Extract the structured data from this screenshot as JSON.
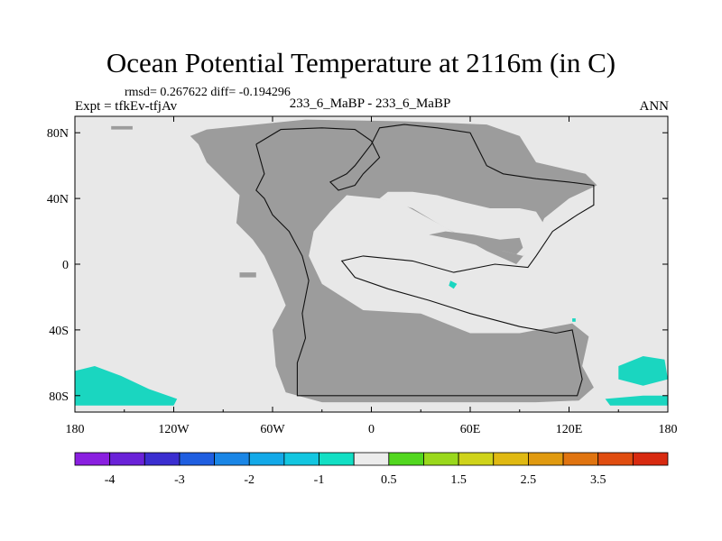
{
  "title": "Ocean Potential Temperature at 2116m (in C)",
  "stats_line": "rmsd= 0.267622 diff= -0.194296",
  "experiment": "Expt = tfkEv-tfjAv",
  "period": "233_6_MaBP - 233_6_MaBP",
  "season": "ANN",
  "chart_data": {
    "type": "heatmap",
    "projection": "cylindrical-equidistant",
    "x_tick_labels": [
      "180",
      "120W",
      "60W",
      "0",
      "60E",
      "120E",
      "180"
    ],
    "x_tick_values": [
      -180,
      -120,
      -60,
      0,
      60,
      120,
      180
    ],
    "y_tick_labels": [
      "80N",
      "40N",
      "0",
      "40S",
      "80S"
    ],
    "y_tick_values": [
      80,
      40,
      0,
      -40,
      -80
    ],
    "xlim": [
      -180,
      180
    ],
    "ylim": [
      -90,
      90
    ],
    "colorbar": {
      "levels": [
        -4,
        -3.5,
        -3,
        -2.5,
        -2,
        -1.5,
        -1,
        -0.5,
        0.5,
        1,
        1.5,
        2,
        2.5,
        3,
        3.5,
        4
      ],
      "level_labels": [
        "-4",
        "-3",
        "-2",
        "-1",
        "0.5",
        "1.5",
        "2.5",
        "3.5"
      ],
      "colors": [
        "#8a1fe0",
        "#6a22d8",
        "#3b2ed0",
        "#1f5ee0",
        "#1a86e6",
        "#13a9e8",
        "#13c6e0",
        "#12dfc4",
        "#ececec",
        "#52d71f",
        "#9ad81c",
        "#cfd31a",
        "#e0b912",
        "#e09a10",
        "#e07410",
        "#e04d10",
        "#d82a10"
      ]
    },
    "land_color": "#9c9c9c",
    "ocean_color": "#e8e8e8",
    "highlight_color": "#1ad6c0",
    "regions": {
      "supercontinent": [
        [
          -105,
          73
        ],
        [
          -110,
          78
        ],
        [
          -100,
          82
        ],
        [
          -70,
          85
        ],
        [
          -40,
          88
        ],
        [
          20,
          87
        ],
        [
          70,
          85
        ],
        [
          90,
          78
        ],
        [
          100,
          62
        ],
        [
          130,
          55
        ],
        [
          137,
          48
        ],
        [
          120,
          40
        ],
        [
          105,
          28
        ],
        [
          98,
          12
        ],
        [
          88,
          0
        ],
        [
          70,
          8
        ],
        [
          40,
          25
        ],
        [
          20,
          36
        ],
        [
          5,
          40
        ],
        [
          -15,
          42
        ],
        [
          -25,
          32
        ],
        [
          -35,
          20
        ],
        [
          -38,
          5
        ],
        [
          -30,
          -12
        ],
        [
          -5,
          -28
        ],
        [
          30,
          -30
        ],
        [
          60,
          -42
        ],
        [
          90,
          -42
        ],
        [
          122,
          -36
        ],
        [
          132,
          -44
        ],
        [
          128,
          -62
        ],
        [
          135,
          -75
        ],
        [
          126,
          -83
        ],
        [
          100,
          -84
        ],
        [
          40,
          -84
        ],
        [
          -30,
          -84
        ],
        [
          -52,
          -78
        ],
        [
          -58,
          -62
        ],
        [
          -60,
          -40
        ],
        [
          -52,
          -25
        ],
        [
          -58,
          -10
        ],
        [
          -65,
          5
        ],
        [
          -72,
          15
        ],
        [
          -82,
          25
        ],
        [
          -80,
          42
        ],
        [
          -100,
          62
        ]
      ],
      "land_outline": [
        [
          -70,
          73
        ],
        [
          -65,
          55
        ],
        [
          -70,
          45
        ],
        [
          -65,
          40
        ],
        [
          -60,
          30
        ],
        [
          -50,
          20
        ],
        [
          -42,
          5
        ],
        [
          -38,
          -10
        ],
        [
          -42,
          -30
        ],
        [
          -40,
          -45
        ],
        [
          -45,
          -60
        ],
        [
          -45,
          -80
        ],
        [
          -10,
          -80
        ],
        [
          60,
          -80
        ],
        [
          100,
          -80
        ],
        [
          125,
          -80
        ],
        [
          128,
          -70
        ],
        [
          125,
          -55
        ],
        [
          122,
          -40
        ],
        [
          112,
          -42
        ],
        [
          90,
          -38
        ],
        [
          60,
          -30
        ],
        [
          35,
          -22
        ],
        [
          10,
          -15
        ],
        [
          -10,
          -8
        ],
        [
          -18,
          2
        ],
        [
          -5,
          5
        ],
        [
          25,
          2
        ],
        [
          50,
          -5
        ],
        [
          75,
          0
        ],
        [
          95,
          -2
        ],
        [
          100,
          5
        ],
        [
          110,
          20
        ],
        [
          125,
          30
        ],
        [
          135,
          36
        ],
        [
          135,
          48
        ],
        [
          120,
          50
        ],
        [
          100,
          52
        ],
        [
          80,
          55
        ],
        [
          70,
          60
        ],
        [
          65,
          70
        ],
        [
          60,
          80
        ],
        [
          40,
          83
        ],
        [
          20,
          85
        ],
        [
          5,
          83
        ],
        [
          0,
          73
        ],
        [
          -10,
          60
        ],
        [
          -15,
          55
        ],
        [
          -25,
          50
        ],
        [
          -20,
          45
        ],
        [
          -10,
          48
        ],
        [
          -5,
          55
        ],
        [
          5,
          65
        ],
        [
          0,
          75
        ],
        [
          -10,
          82
        ],
        [
          -30,
          83
        ],
        [
          -55,
          82
        ],
        [
          -70,
          73
        ]
      ],
      "tethys_gulf": [
        [
          5,
          40
        ],
        [
          25,
          34
        ],
        [
          45,
          22
        ],
        [
          65,
          12
        ],
        [
          80,
          8
        ],
        [
          92,
          5
        ],
        [
          100,
          12
        ],
        [
          105,
          24
        ],
        [
          100,
          32
        ],
        [
          90,
          34
        ],
        [
          72,
          34
        ],
        [
          55,
          38
        ],
        [
          40,
          42
        ],
        [
          25,
          44
        ],
        [
          10,
          44
        ]
      ],
      "east_land_island": [
        [
          35,
          18
        ],
        [
          55,
          14
        ],
        [
          70,
          10
        ],
        [
          80,
          8
        ],
        [
          88,
          6
        ],
        [
          92,
          10
        ],
        [
          90,
          16
        ],
        [
          78,
          15
        ],
        [
          62,
          18
        ],
        [
          45,
          20
        ]
      ],
      "warming_patches": [
        [
          [
            -180,
            -65
          ],
          [
            -168,
            -62
          ],
          [
            -152,
            -68
          ],
          [
            -135,
            -76
          ],
          [
            -118,
            -82
          ],
          [
            -120,
            -86
          ],
          [
            -150,
            -86
          ],
          [
            -180,
            -86
          ]
        ],
        [
          [
            150,
            -62
          ],
          [
            165,
            -56
          ],
          [
            178,
            -58
          ],
          [
            180,
            -70
          ],
          [
            165,
            -74
          ],
          [
            150,
            -70
          ]
        ],
        [
          [
            142,
            -82
          ],
          [
            165,
            -80
          ],
          [
            180,
            -80
          ],
          [
            180,
            -86
          ],
          [
            145,
            -86
          ]
        ],
        [
          [
            48,
            -10
          ],
          [
            52,
            -12
          ],
          [
            50,
            -15
          ],
          [
            47,
            -13
          ]
        ],
        [
          [
            122,
            -33
          ],
          [
            124,
            -33
          ],
          [
            124,
            -35
          ],
          [
            122,
            -35
          ]
        ]
      ],
      "small_islands": [
        [
          [
            -80,
            -5
          ],
          [
            -70,
            -5
          ],
          [
            -70,
            -8
          ],
          [
            -80,
            -8
          ]
        ],
        [
          [
            -158,
            84
          ],
          [
            -145,
            84
          ],
          [
            -145,
            82
          ],
          [
            -158,
            82
          ]
        ],
        [
          [
            -55,
            78
          ],
          [
            -40,
            78
          ],
          [
            -40,
            76
          ],
          [
            -55,
            76
          ]
        ]
      ]
    }
  }
}
